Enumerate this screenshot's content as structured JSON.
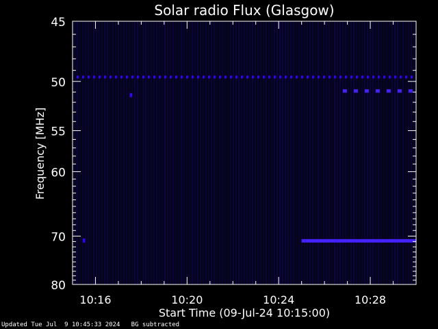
{
  "chart_data": {
    "type": "heatmap",
    "title": "Solar radio Flux (Glasgow)",
    "xlabel": "Start Time (09-Jul-24 10:15:00)",
    "ylabel": "Frequency [MHz]",
    "x_tick_labels": [
      "10:16",
      "10:20",
      "10:24",
      "10:28"
    ],
    "x_tick_minutes": [
      1,
      5,
      9,
      13
    ],
    "x_range_minutes": [
      0,
      15
    ],
    "y_tick_labels": [
      "45",
      "50",
      "55",
      "60",
      "70",
      "80"
    ],
    "y_tick_values": [
      45,
      50,
      55,
      60,
      70,
      80
    ],
    "y_range": [
      45,
      80
    ],
    "background_color": "#000000",
    "plot_background": "#05051a",
    "signal_color": "#3300ff",
    "bright_signal_color": "#4422ff",
    "features": [
      {
        "label": "interference",
        "freq_mhz": 49.6,
        "from_min": 0.0,
        "to_min": 15.0,
        "style": "dashed"
      },
      {
        "label": "burst",
        "freq_mhz": 50.9,
        "from_min": 11.8,
        "to_min": 15.0,
        "style": "dashed-bright"
      },
      {
        "label": "burst",
        "freq_mhz": 70.8,
        "from_min": 10.0,
        "to_min": 15.0,
        "style": "solid-bright"
      },
      {
        "label": "spot",
        "freq_mhz": 70.8,
        "from_min": 0.45,
        "to_min": 0.55,
        "style": "spot"
      },
      {
        "label": "spot",
        "freq_mhz": 51.3,
        "from_min": 2.5,
        "to_min": 2.6,
        "style": "spot"
      }
    ]
  },
  "footer": {
    "updated": "Updated Tue Jul  9 10:45:33 2024",
    "note": "BG subtracted"
  }
}
